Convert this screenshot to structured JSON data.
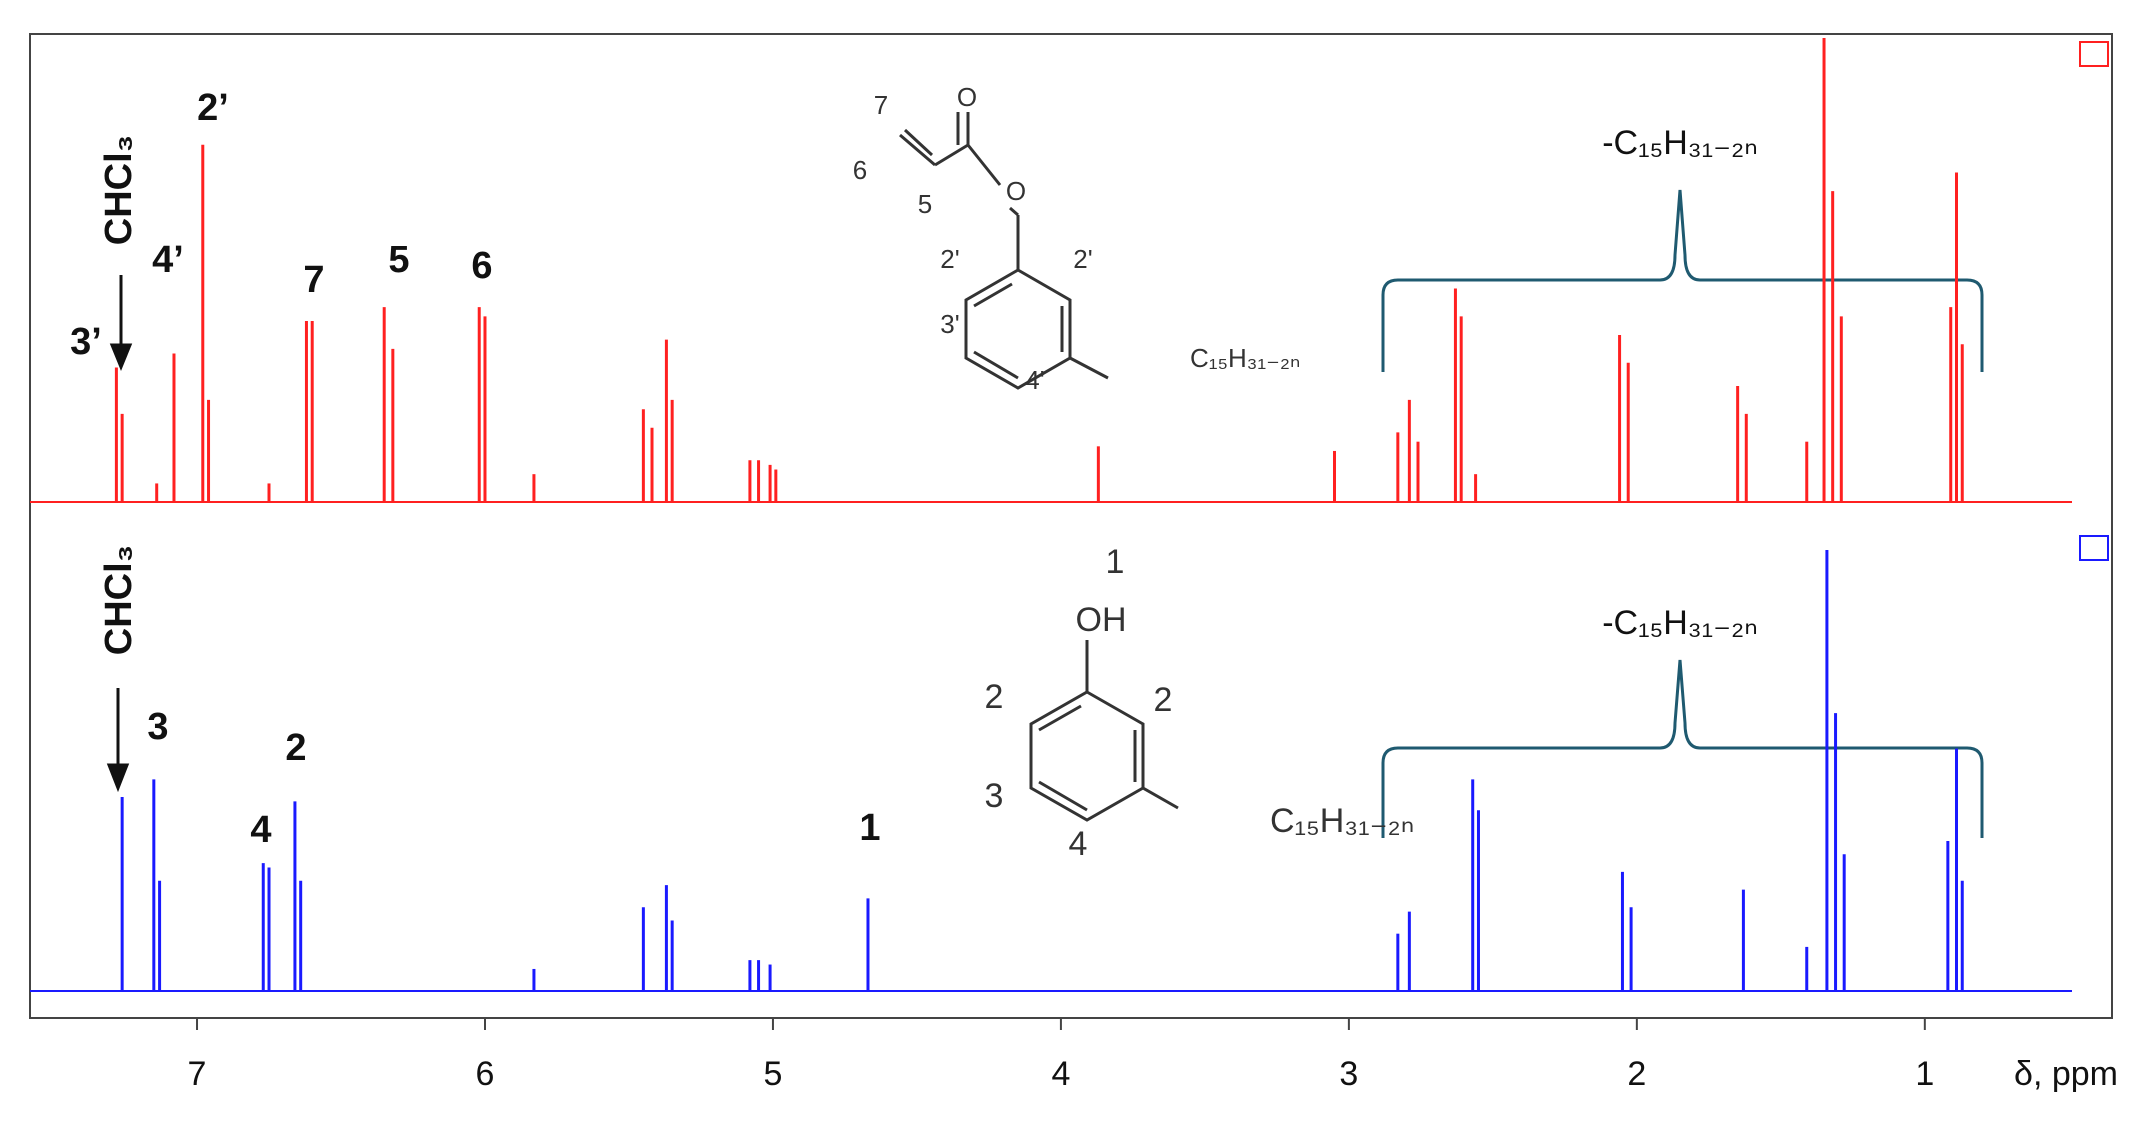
{
  "chart_data": [
    {
      "type": "stem",
      "color": "#ff2020",
      "xlim": [
        7.58,
        0.35
      ],
      "ylim": [
        0,
        100
      ],
      "x": [
        7.28,
        7.26,
        7.14,
        7.08,
        6.98,
        6.96,
        6.75,
        6.62,
        6.6,
        6.35,
        6.32,
        6.02,
        6.0,
        5.83,
        5.45,
        5.42,
        5.37,
        5.35,
        5.08,
        5.05,
        5.01,
        4.99,
        3.87,
        3.05,
        2.83,
        2.79,
        2.76,
        2.63,
        2.61,
        2.56,
        2.06,
        2.03,
        1.65,
        1.62,
        1.41,
        1.35,
        1.32,
        1.29,
        0.91,
        0.89,
        0.87
      ],
      "values": [
        29,
        19,
        4,
        32,
        77,
        22,
        4,
        39,
        39,
        42,
        33,
        42,
        40,
        6,
        20,
        16,
        35,
        22,
        9,
        9,
        8,
        7,
        12,
        11,
        15,
        22,
        13,
        46,
        40,
        6,
        36,
        30,
        25,
        19,
        13,
        100,
        67,
        40,
        42,
        71,
        34
      ],
      "peak_labels": [
        "3’",
        "CHCl₃",
        "4’",
        "2’",
        "7",
        "5",
        "6",
        "-C₁₅H₃₁₋₂ₙ"
      ],
      "structure_labels": [
        "7",
        "6",
        "5",
        "O",
        "O",
        "2'",
        "2'",
        "3'",
        "4'",
        "C₁₅H₃₁₋₂ₙ"
      ]
    },
    {
      "type": "stem",
      "color": "#1a1aff",
      "xlim": [
        7.58,
        0.35
      ],
      "ylim": [
        0,
        100
      ],
      "x": [
        7.26,
        7.15,
        7.13,
        6.77,
        6.75,
        6.66,
        6.64,
        5.83,
        5.45,
        5.37,
        5.35,
        5.08,
        5.05,
        5.01,
        4.67,
        2.83,
        2.79,
        2.57,
        2.55,
        2.05,
        2.02,
        1.63,
        1.41,
        1.34,
        1.31,
        1.28,
        0.92,
        0.89,
        0.87
      ],
      "values": [
        44,
        48,
        25,
        29,
        28,
        43,
        25,
        5,
        19,
        24,
        16,
        7,
        7,
        6,
        21,
        13,
        18,
        48,
        41,
        27,
        19,
        23,
        10,
        100,
        63,
        31,
        34,
        55,
        25
      ],
      "xticks": [
        7,
        6,
        5,
        4,
        3,
        2,
        1
      ],
      "x_label": "δ, ppm",
      "peak_labels": [
        "CHCl₃",
        "3",
        "2",
        "4",
        "1",
        "-C₁₅H₃₁₋₂ₙ"
      ],
      "structure_labels": [
        "1",
        "OH",
        "2",
        "2",
        "3",
        "4",
        "C₁₅H₃₁₋₂ₙ"
      ]
    }
  ]
}
